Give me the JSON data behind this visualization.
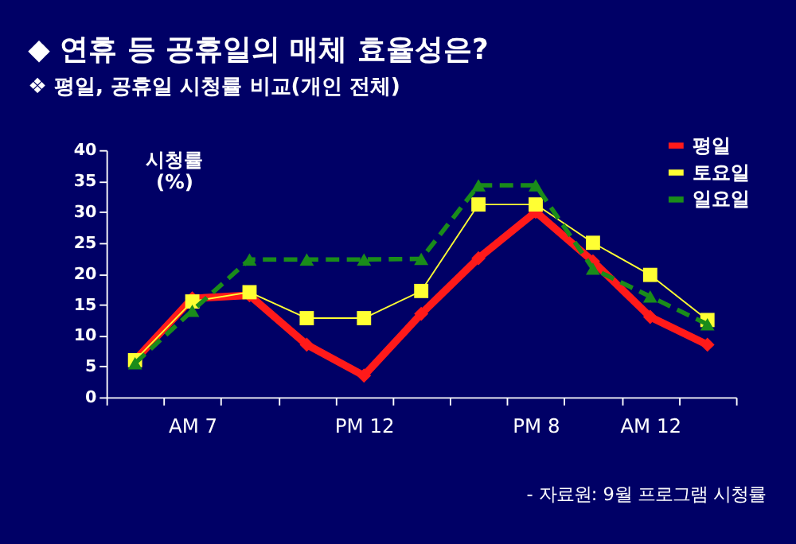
{
  "chart_data": {
    "type": "line",
    "title": "◆ 연휴 등 공휴일의 매체 효율성은?",
    "subtitle": "❖ 평일, 공휴일 시청률 비교(개인 전체)",
    "ylabel": "시청률 (%)",
    "categories": [
      null,
      "AM 7",
      null,
      null,
      "PM 12",
      null,
      null,
      "PM 8",
      null,
      "AM 12",
      null
    ],
    "series": [
      {
        "name": "평일",
        "color": "#ff1a1a",
        "marker": "diamond",
        "line_style": "solid",
        "values": [
          6,
          16,
          16.5,
          8.5,
          3.5,
          13.5,
          22.5,
          30,
          22,
          13,
          8.5
        ]
      },
      {
        "name": "토요일",
        "color": "#ffff33",
        "marker": "square",
        "line_style": "solid",
        "values": [
          6,
          15.5,
          17,
          12.8,
          12.8,
          17.2,
          31.2,
          31.2,
          25,
          19.8,
          12.5
        ]
      },
      {
        "name": "일요일",
        "color": "#1a8c1a",
        "marker": "triangle",
        "line_style": "dashed",
        "values": [
          5.5,
          14,
          22.3,
          22.3,
          22.3,
          22.4,
          34.3,
          34.3,
          20.8,
          16.3,
          11.8
        ]
      }
    ],
    "ylim": [
      0,
      40
    ],
    "yticks": [
      0,
      5,
      10,
      15,
      20,
      25,
      30,
      35,
      40
    ],
    "grid": false,
    "legend": "top right",
    "annotations": [
      "- 자료원: 9월 프로그램 시청률"
    ]
  }
}
